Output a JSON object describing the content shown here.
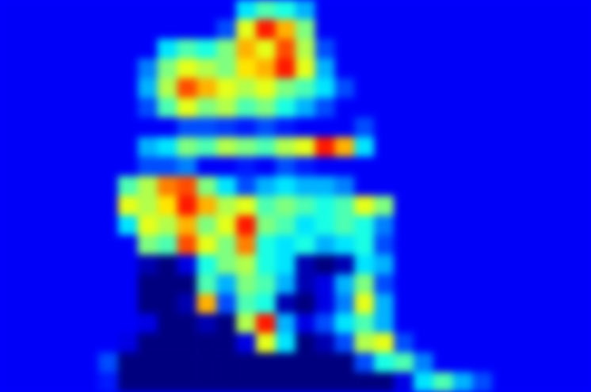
{
  "chart_data": {
    "type": "heatmap",
    "tick_labels": false,
    "grid": false,
    "color_range": [
      0,
      1
    ],
    "cells": [
      [
        0.12,
        0.12,
        0.12,
        0.12,
        0.12,
        0.12,
        0.12,
        0.12,
        0.12,
        0.12,
        0.12,
        0.12,
        0.35,
        0.45,
        0.4,
        0.3,
        0.12,
        0.12,
        0.12,
        0.12,
        0.12,
        0.12,
        0.12,
        0.12,
        0.12,
        0.12,
        0.12,
        0.12,
        0.12,
        0.12
      ],
      [
        0.12,
        0.12,
        0.12,
        0.12,
        0.12,
        0.12,
        0.12,
        0.12,
        0.12,
        0.12,
        0.12,
        0.2,
        0.6,
        0.85,
        0.7,
        0.5,
        0.12,
        0.12,
        0.12,
        0.12,
        0.12,
        0.12,
        0.12,
        0.12,
        0.12,
        0.12,
        0.12,
        0.12,
        0.12,
        0.12
      ],
      [
        0.12,
        0.12,
        0.12,
        0.12,
        0.12,
        0.12,
        0.12,
        0.12,
        0.35,
        0.45,
        0.4,
        0.5,
        0.7,
        0.6,
        0.8,
        0.55,
        0.2,
        0.12,
        0.12,
        0.12,
        0.12,
        0.12,
        0.12,
        0.12,
        0.12,
        0.12,
        0.12,
        0.12,
        0.12,
        0.12
      ],
      [
        0.12,
        0.12,
        0.12,
        0.12,
        0.12,
        0.12,
        0.12,
        0.25,
        0.5,
        0.6,
        0.55,
        0.5,
        0.65,
        0.7,
        0.85,
        0.6,
        0.3,
        0.12,
        0.12,
        0.12,
        0.12,
        0.12,
        0.12,
        0.12,
        0.12,
        0.12,
        0.12,
        0.12,
        0.12,
        0.12
      ],
      [
        0.12,
        0.12,
        0.12,
        0.12,
        0.12,
        0.12,
        0.12,
        0.3,
        0.55,
        0.8,
        0.7,
        0.6,
        0.55,
        0.6,
        0.5,
        0.45,
        0.35,
        0.2,
        0.12,
        0.12,
        0.12,
        0.12,
        0.12,
        0.12,
        0.12,
        0.12,
        0.12,
        0.12,
        0.12,
        0.12
      ],
      [
        0.12,
        0.12,
        0.12,
        0.12,
        0.12,
        0.12,
        0.12,
        0.2,
        0.45,
        0.6,
        0.5,
        0.55,
        0.45,
        0.5,
        0.4,
        0.3,
        0.2,
        0.12,
        0.12,
        0.12,
        0.12,
        0.12,
        0.12,
        0.12,
        0.12,
        0.12,
        0.12,
        0.12,
        0.12,
        0.12
      ],
      [
        0.12,
        0.12,
        0.12,
        0.12,
        0.12,
        0.12,
        0.12,
        0.12,
        0.12,
        0.2,
        0.2,
        0.18,
        0.15,
        0.2,
        0.15,
        0.12,
        0.12,
        0.12,
        0.2,
        0.12,
        0.12,
        0.12,
        0.12,
        0.12,
        0.12,
        0.12,
        0.12,
        0.12,
        0.12,
        0.12
      ],
      [
        0.12,
        0.12,
        0.12,
        0.12,
        0.12,
        0.12,
        0.12,
        0.3,
        0.35,
        0.5,
        0.45,
        0.55,
        0.5,
        0.45,
        0.55,
        0.6,
        0.85,
        0.7,
        0.35,
        0.12,
        0.12,
        0.12,
        0.12,
        0.12,
        0.12,
        0.12,
        0.12,
        0.12,
        0.12,
        0.12
      ],
      [
        0.12,
        0.12,
        0.12,
        0.12,
        0.12,
        0.12,
        0.12,
        0.2,
        0.2,
        0.25,
        0.12,
        0.12,
        0.15,
        0.12,
        0.2,
        0.15,
        0.12,
        0.12,
        0.12,
        0.12,
        0.12,
        0.12,
        0.12,
        0.12,
        0.12,
        0.12,
        0.12,
        0.12,
        0.12,
        0.12
      ],
      [
        0.12,
        0.12,
        0.12,
        0.12,
        0.12,
        0.12,
        0.45,
        0.55,
        0.75,
        0.8,
        0.5,
        0.35,
        0.2,
        0.3,
        0.35,
        0.3,
        0.3,
        0.25,
        0.12,
        0.12,
        0.12,
        0.12,
        0.12,
        0.12,
        0.12,
        0.12,
        0.12,
        0.12,
        0.12,
        0.12
      ],
      [
        0.12,
        0.12,
        0.12,
        0.12,
        0.12,
        0.12,
        0.6,
        0.55,
        0.65,
        0.85,
        0.7,
        0.55,
        0.6,
        0.45,
        0.5,
        0.45,
        0.4,
        0.45,
        0.6,
        0.5,
        0.12,
        0.12,
        0.12,
        0.12,
        0.12,
        0.12,
        0.12,
        0.12,
        0.12,
        0.12
      ],
      [
        0.12,
        0.12,
        0.12,
        0.12,
        0.12,
        0.12,
        0.35,
        0.6,
        0.55,
        0.7,
        0.5,
        0.6,
        0.85,
        0.5,
        0.45,
        0.35,
        0.4,
        0.45,
        0.4,
        0.25,
        0.12,
        0.12,
        0.12,
        0.12,
        0.12,
        0.12,
        0.12,
        0.12,
        0.12,
        0.12
      ],
      [
        0.12,
        0.12,
        0.12,
        0.12,
        0.12,
        0.12,
        0.12,
        0.5,
        0.45,
        0.8,
        0.6,
        0.5,
        0.75,
        0.4,
        0.35,
        0.4,
        0.3,
        0.35,
        0.4,
        0.2,
        0.12,
        0.12,
        0.12,
        0.12,
        0.12,
        0.12,
        0.12,
        0.12,
        0.12,
        0.12
      ],
      [
        0.12,
        0.12,
        0.12,
        0.12,
        0.12,
        0.12,
        0.12,
        0.05,
        0,
        0.1,
        0.4,
        0.5,
        0.55,
        0.4,
        0.35,
        0.05,
        0,
        0.05,
        0.35,
        0.3,
        0.12,
        0.12,
        0.12,
        0.12,
        0.12,
        0.12,
        0.12,
        0.12,
        0.12,
        0.12
      ],
      [
        0.12,
        0.12,
        0.12,
        0.12,
        0.12,
        0.12,
        0.12,
        0,
        0,
        0,
        0.45,
        0.3,
        0.5,
        0.45,
        0.3,
        0.05,
        0.1,
        0.3,
        0.5,
        0.2,
        0.12,
        0.12,
        0.12,
        0.12,
        0.12,
        0.12,
        0.12,
        0.12,
        0.12,
        0.12
      ],
      [
        0.12,
        0.12,
        0.12,
        0.12,
        0.12,
        0.12,
        0.12,
        0,
        0,
        0.05,
        0.7,
        0.2,
        0.45,
        0.4,
        0.05,
        0,
        0.1,
        0.25,
        0.6,
        0.3,
        0.12,
        0.12,
        0.12,
        0.12,
        0.12,
        0.12,
        0.12,
        0.12,
        0.12,
        0.12
      ],
      [
        0.12,
        0.12,
        0.12,
        0.12,
        0.12,
        0.12,
        0.12,
        0.1,
        0,
        0,
        0.05,
        0,
        0.55,
        0.85,
        0.3,
        0.1,
        0.2,
        0.35,
        0.45,
        0.3,
        0.12,
        0.12,
        0.12,
        0.12,
        0.12,
        0.12,
        0.12,
        0.12,
        0.12,
        0.12
      ],
      [
        0.12,
        0.12,
        0.12,
        0.12,
        0.12,
        0.12,
        0.1,
        0,
        0,
        0,
        0,
        0,
        0.1,
        0.6,
        0.35,
        0,
        0.05,
        0.2,
        0.55,
        0.6,
        0.2,
        0.12,
        0.12,
        0.12,
        0.12,
        0.12,
        0.12,
        0.12,
        0.12,
        0.12
      ],
      [
        0.12,
        0.12,
        0.12,
        0.12,
        0.12,
        0.2,
        0,
        0,
        0,
        0,
        0,
        0,
        0,
        0,
        0,
        0,
        0,
        0,
        0.2,
        0.4,
        0.45,
        0.25,
        0.12,
        0.12,
        0.12,
        0.12,
        0.12,
        0.12,
        0.12,
        0.12
      ],
      [
        0.12,
        0.12,
        0.12,
        0.12,
        0.12,
        0.15,
        0,
        0,
        0,
        0,
        0,
        0,
        0,
        0,
        0,
        0,
        0,
        0,
        0,
        0,
        0.1,
        0.35,
        0.45,
        0.3,
        0.2,
        0.12,
        0.12,
        0.12,
        0.12,
        0.12
      ]
    ]
  }
}
